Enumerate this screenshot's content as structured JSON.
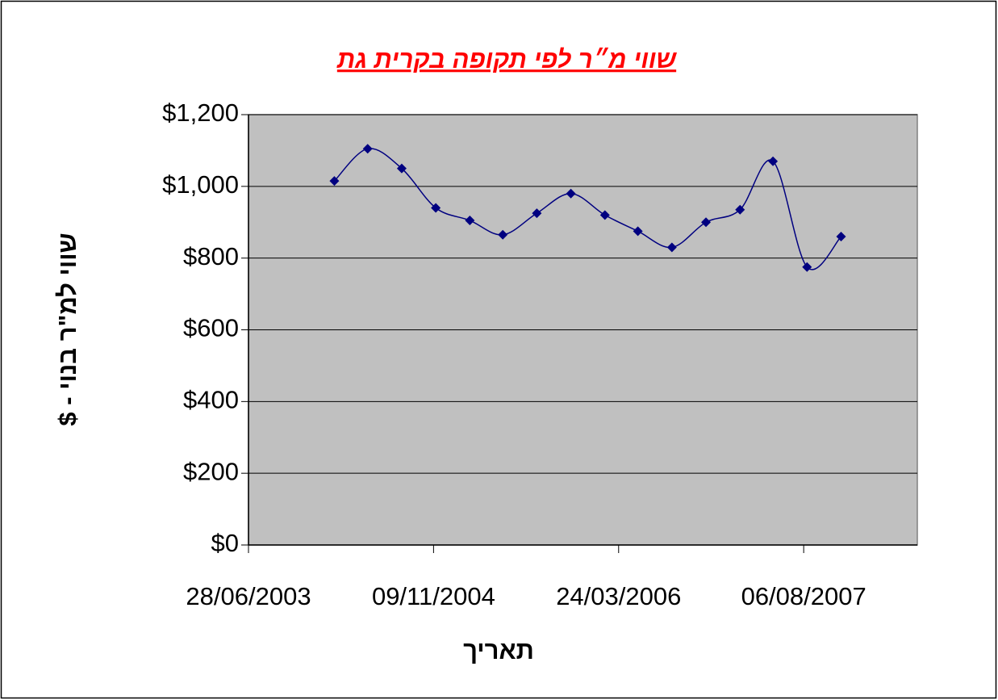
{
  "chart_data": {
    "type": "line",
    "title": "שווי מ״ר לפי תקופה בקרית גת",
    "x_label": "תאריך",
    "y_label": "שווי למ\"ר בנוי - $",
    "x": [
      "2004-02-15",
      "2004-05-15",
      "2004-08-15",
      "2004-11-15",
      "2005-02-15",
      "2005-05-15",
      "2005-08-15",
      "2005-11-15",
      "2006-02-15",
      "2006-05-15",
      "2006-08-15",
      "2006-11-15",
      "2007-02-15",
      "2007-05-15",
      "2007-08-15",
      "2007-11-15"
    ],
    "series": [
      {
        "name": "שווי",
        "color": "#000080",
        "marker_color": "#000080",
        "values": [
          1015,
          1105,
          1050,
          940,
          905,
          865,
          925,
          980,
          920,
          875,
          830,
          900,
          935,
          1070,
          775,
          860
        ]
      }
    ],
    "xlim": [
      "2003-06-28",
      "2008-06-08"
    ],
    "xticks": [
      {
        "value": "2003-06-28",
        "label": "28/06/2003"
      },
      {
        "value": "2004-11-09",
        "label": "09/11/2004"
      },
      {
        "value": "2006-03-24",
        "label": "24/03/2006"
      },
      {
        "value": "2007-08-06",
        "label": "06/08/2007"
      }
    ],
    "ylim": [
      0,
      1200
    ],
    "yticks": [
      {
        "value": 0,
        "label": "$0"
      },
      {
        "value": 200,
        "label": "$200"
      },
      {
        "value": 400,
        "label": "$400"
      },
      {
        "value": 600,
        "label": "$600"
      },
      {
        "value": 800,
        "label": "$800"
      },
      {
        "value": 1000,
        "label": "$1,000"
      },
      {
        "value": 1200,
        "label": "$1,200"
      }
    ],
    "grid": true,
    "plot_background": "#c0c0c0",
    "smooth": true
  }
}
